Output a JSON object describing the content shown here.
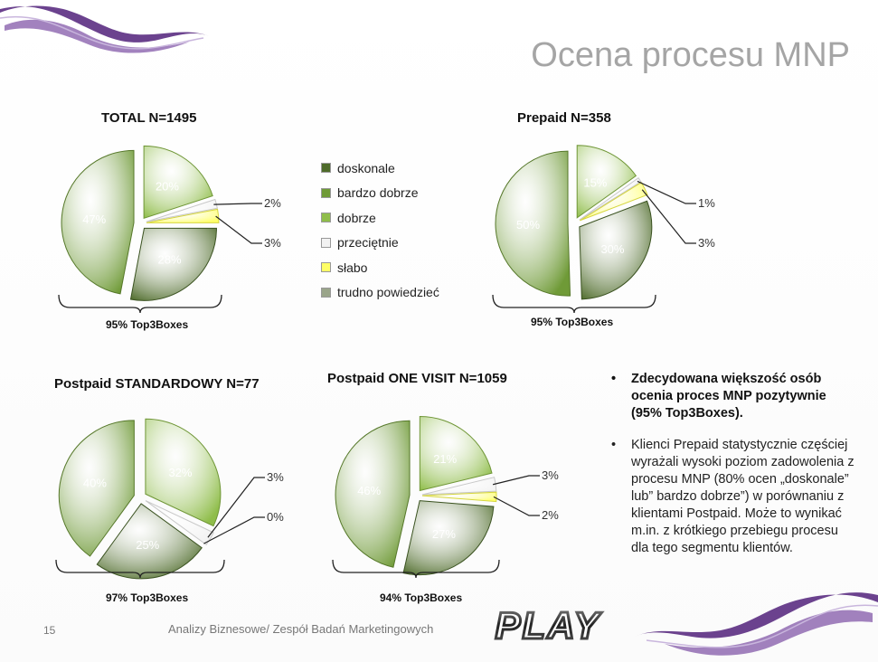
{
  "slide": {
    "title": "Ocena procesu MNP",
    "page_number": "15",
    "footer": "Analizy Biznesowe/ Zespół Badań Marketingowych",
    "logo_text": "PLAY",
    "accent_color": "#5b2d82"
  },
  "legend": {
    "items": [
      {
        "label": "doskonale",
        "color": "#4e6b2a"
      },
      {
        "label": "bardzo dobrze",
        "color": "#6f9a37"
      },
      {
        "label": "dobrze",
        "color": "#8fbd4a"
      },
      {
        "label": "przeciętnie",
        "color": "#f2f2f2"
      },
      {
        "label": "słabo",
        "color": "#ffff66"
      },
      {
        "label": "trudno powiedzieć",
        "color": "#9aa58a"
      }
    ]
  },
  "chart_data": [
    {
      "type": "pie",
      "title": "TOTAL N=1495",
      "categories": [
        "doskonale",
        "bardzo dobrze",
        "dobrze",
        "przeciętnie",
        "słabo",
        "trudno powiedzieć"
      ],
      "values": [
        28,
        47,
        20,
        2,
        3,
        0
      ],
      "labels": [
        "28%",
        "47%",
        "20%",
        "2%",
        "3%",
        ""
      ],
      "summary": "95% Top3Boxes"
    },
    {
      "type": "pie",
      "title": "Prepaid N=358",
      "categories": [
        "doskonale",
        "bardzo dobrze",
        "dobrze",
        "przeciętnie",
        "słabo",
        "trudno powiedzieć"
      ],
      "values": [
        30,
        50,
        15,
        1,
        3,
        0
      ],
      "labels": [
        "30%",
        "50%",
        "15%",
        "1%",
        "3%",
        ""
      ],
      "summary": "95% Top3Boxes"
    },
    {
      "type": "pie",
      "title": "Postpaid STANDARDOWY N=77",
      "categories": [
        "doskonale",
        "bardzo dobrze",
        "dobrze",
        "przeciętnie",
        "słabo",
        "trudno powiedzieć"
      ],
      "values": [
        25,
        40,
        32,
        3,
        0,
        0
      ],
      "labels": [
        "25%",
        "40%",
        "32%",
        "3%",
        "0%",
        ""
      ],
      "summary": "97% Top3Boxes"
    },
    {
      "type": "pie",
      "title": "Postpaid ONE VISIT N=1059",
      "categories": [
        "doskonale",
        "bardzo dobrze",
        "dobrze",
        "przeciętnie",
        "słabo",
        "trudno powiedzieć"
      ],
      "values": [
        27,
        46,
        21,
        3,
        2,
        0
      ],
      "labels": [
        "27%",
        "46%",
        "21%",
        "3%",
        "2%",
        ""
      ],
      "summary": "94% Top3Boxes"
    }
  ],
  "bullets": [
    {
      "text": "Zdecydowana większość osób ocenia proces MNP pozytywnie (95% Top3Boxes).",
      "bold": true
    },
    {
      "text": "Klienci Prepaid statystycznie częściej wyrażali wysoki poziom zadowolenia z procesu MNP (80% ocen „doskonale” lub” bardzo dobrze”) w porównaniu z klientami Postpaid. Może to wynikać m.in. z krótkiego przebiegu procesu dla tego segmentu klientów.",
      "bold": false
    }
  ]
}
